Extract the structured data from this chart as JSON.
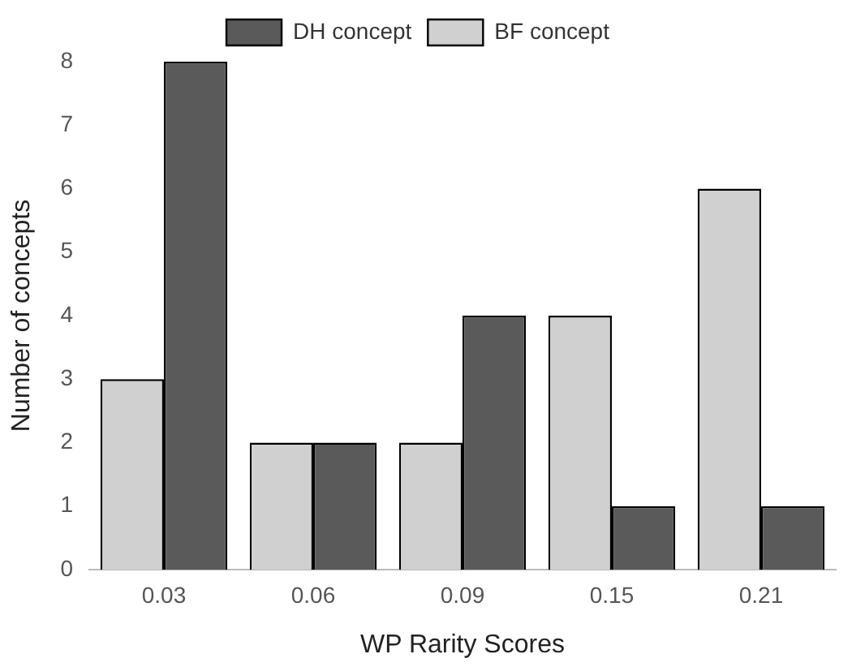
{
  "chart_data": {
    "type": "bar",
    "xlabel": "WP Rarity Scores",
    "ylabel": "Number of concepts",
    "categories": [
      "0.03",
      "0.06",
      "0.09",
      "0.15",
      "0.21"
    ],
    "series": [
      {
        "name": "BF concept",
        "color": "#d0d0d0",
        "values": [
          3,
          2,
          2,
          4,
          6
        ]
      },
      {
        "name": "DH concept",
        "color": "#5a5a5a",
        "values": [
          8,
          2,
          4,
          1,
          1
        ]
      }
    ],
    "ylim": [
      0,
      8
    ],
    "yticks": [
      0,
      1,
      2,
      3,
      4,
      5,
      6,
      7,
      8
    ],
    "grid": false,
    "legend": "top"
  }
}
